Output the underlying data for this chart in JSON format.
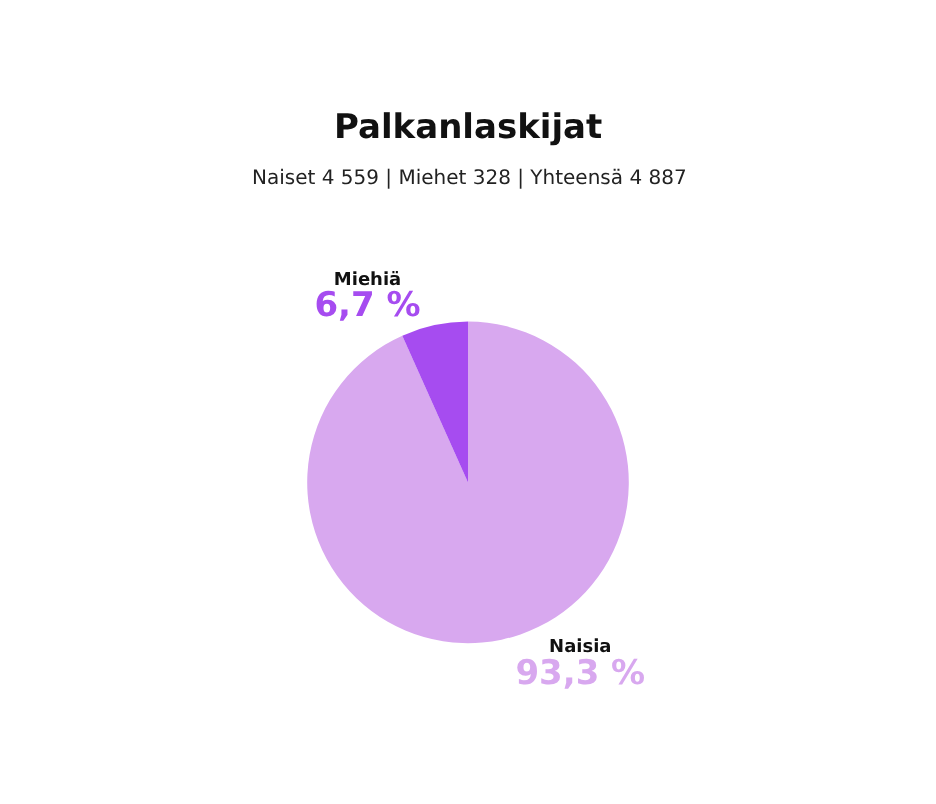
{
  "chart_data": {
    "type": "pie",
    "title": "Palkanlaskijat",
    "subtitle": "Naiset 4 559 | Miehet 328 | Yhteensä 4 887",
    "categories": [
      "Naisia",
      "Miehiä"
    ],
    "values": [
      93.3,
      6.7
    ],
    "colors": [
      "#d8a8ef",
      "#a64cf0"
    ],
    "value_labels": [
      "93,3 %",
      "6,7 %"
    ]
  }
}
